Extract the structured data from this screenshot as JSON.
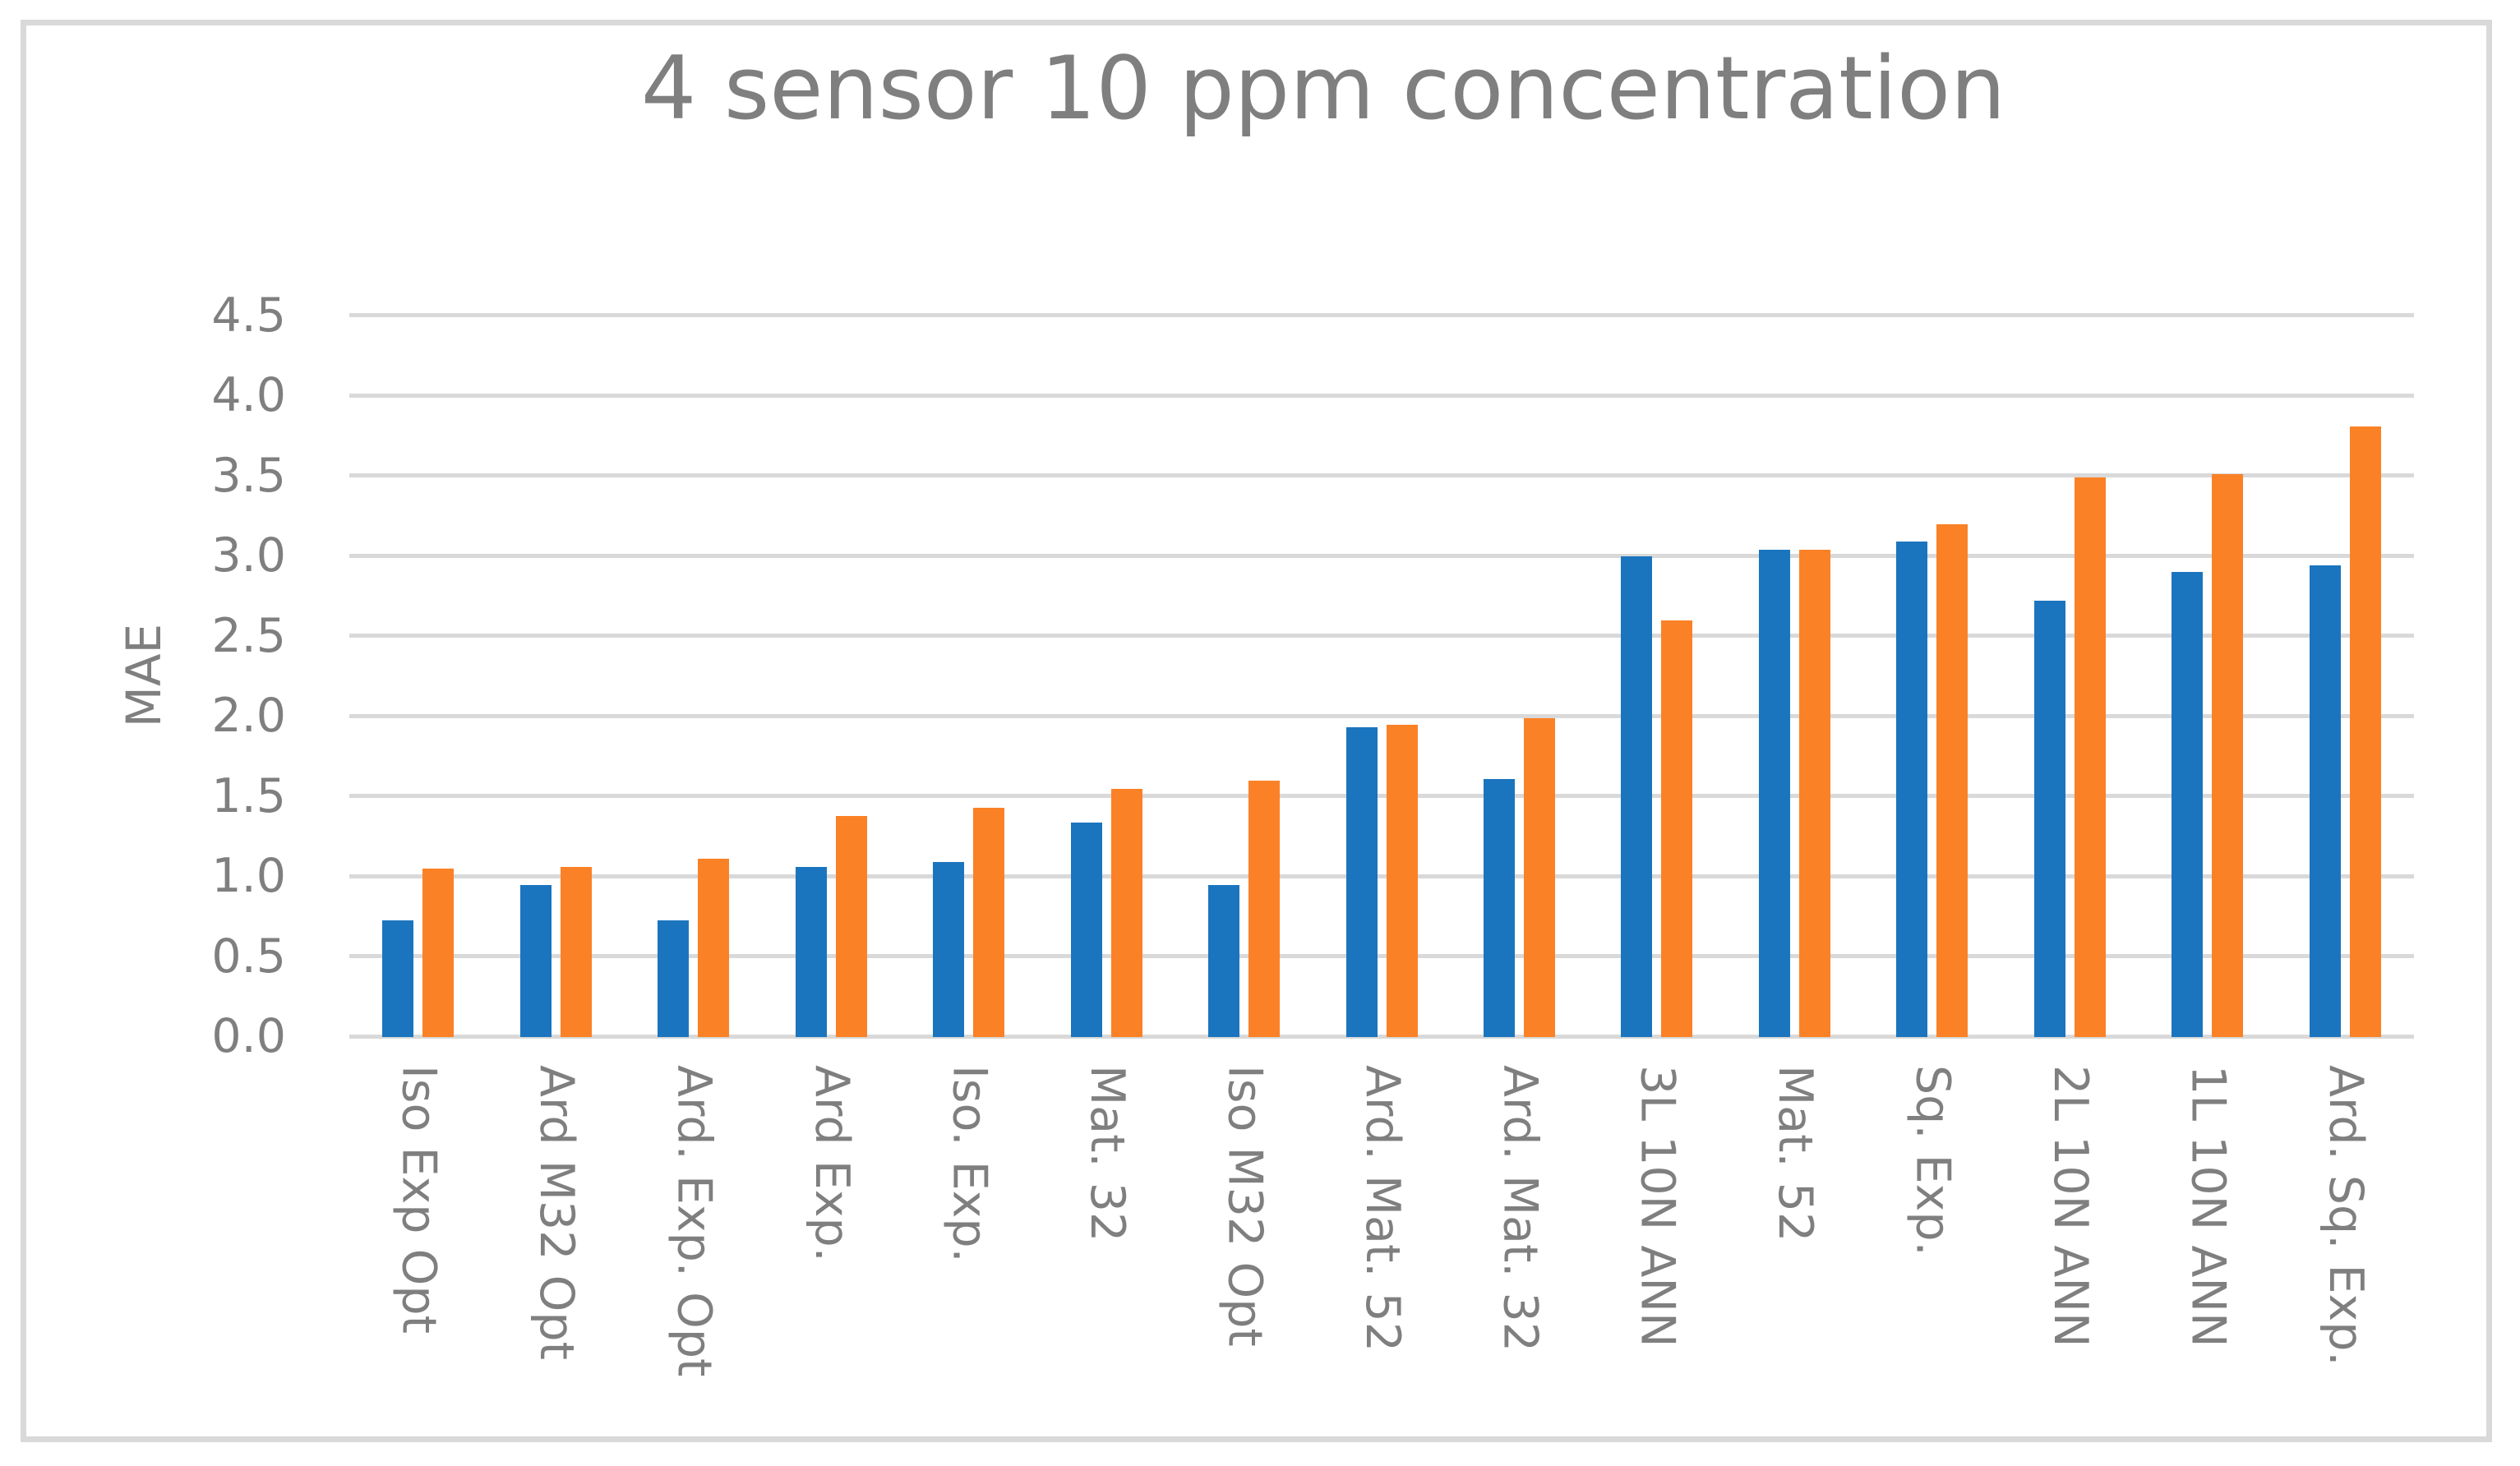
{
  "title": "4 sensor 10 ppm concentration",
  "chart_data": {
    "type": "bar",
    "title": "4 sensor 10 ppm concentration",
    "xlabel": "",
    "ylabel": "MAE",
    "ylim": [
      0,
      4.5
    ],
    "ytick_step": 0.5,
    "yticks": [
      "4.5",
      "4.0",
      "3.5",
      "3.0",
      "2.5",
      "2.0",
      "1.5",
      "1.0",
      "0.5",
      "0.0"
    ],
    "grid": true,
    "legend_position": "none",
    "categories": [
      "Iso Exp Opt",
      "Ard M32 Opt",
      "Ard. Exp. Opt",
      "Ard Exp.",
      "Iso. Exp.",
      "Mat. 32",
      "Iso M32 Opt",
      "Ard. Mat. 52",
      "Ard. Mat. 32",
      "3L 10N ANN",
      "Mat. 52",
      "Sq. Exp.",
      "2L 10N ANN",
      "1L 10N ANN",
      "Ard. Sq. Exp."
    ],
    "series": [
      {
        "color": "#1b75be",
        "values": [
          0.73,
          0.95,
          0.73,
          1.06,
          1.09,
          1.34,
          0.95,
          1.93,
          1.61,
          3.0,
          3.04,
          3.09,
          2.72,
          2.9,
          2.94
        ]
      },
      {
        "color": "#fb8126",
        "values": [
          1.05,
          1.06,
          1.11,
          1.38,
          1.43,
          1.55,
          1.6,
          1.95,
          1.99,
          2.6,
          3.04,
          3.2,
          3.49,
          3.51,
          3.81
        ]
      }
    ],
    "colors": {
      "text": "#7f7f7f",
      "gridline": "#d9d9d9",
      "frame": "#d9d9d9",
      "background": "#ffffff"
    }
  }
}
